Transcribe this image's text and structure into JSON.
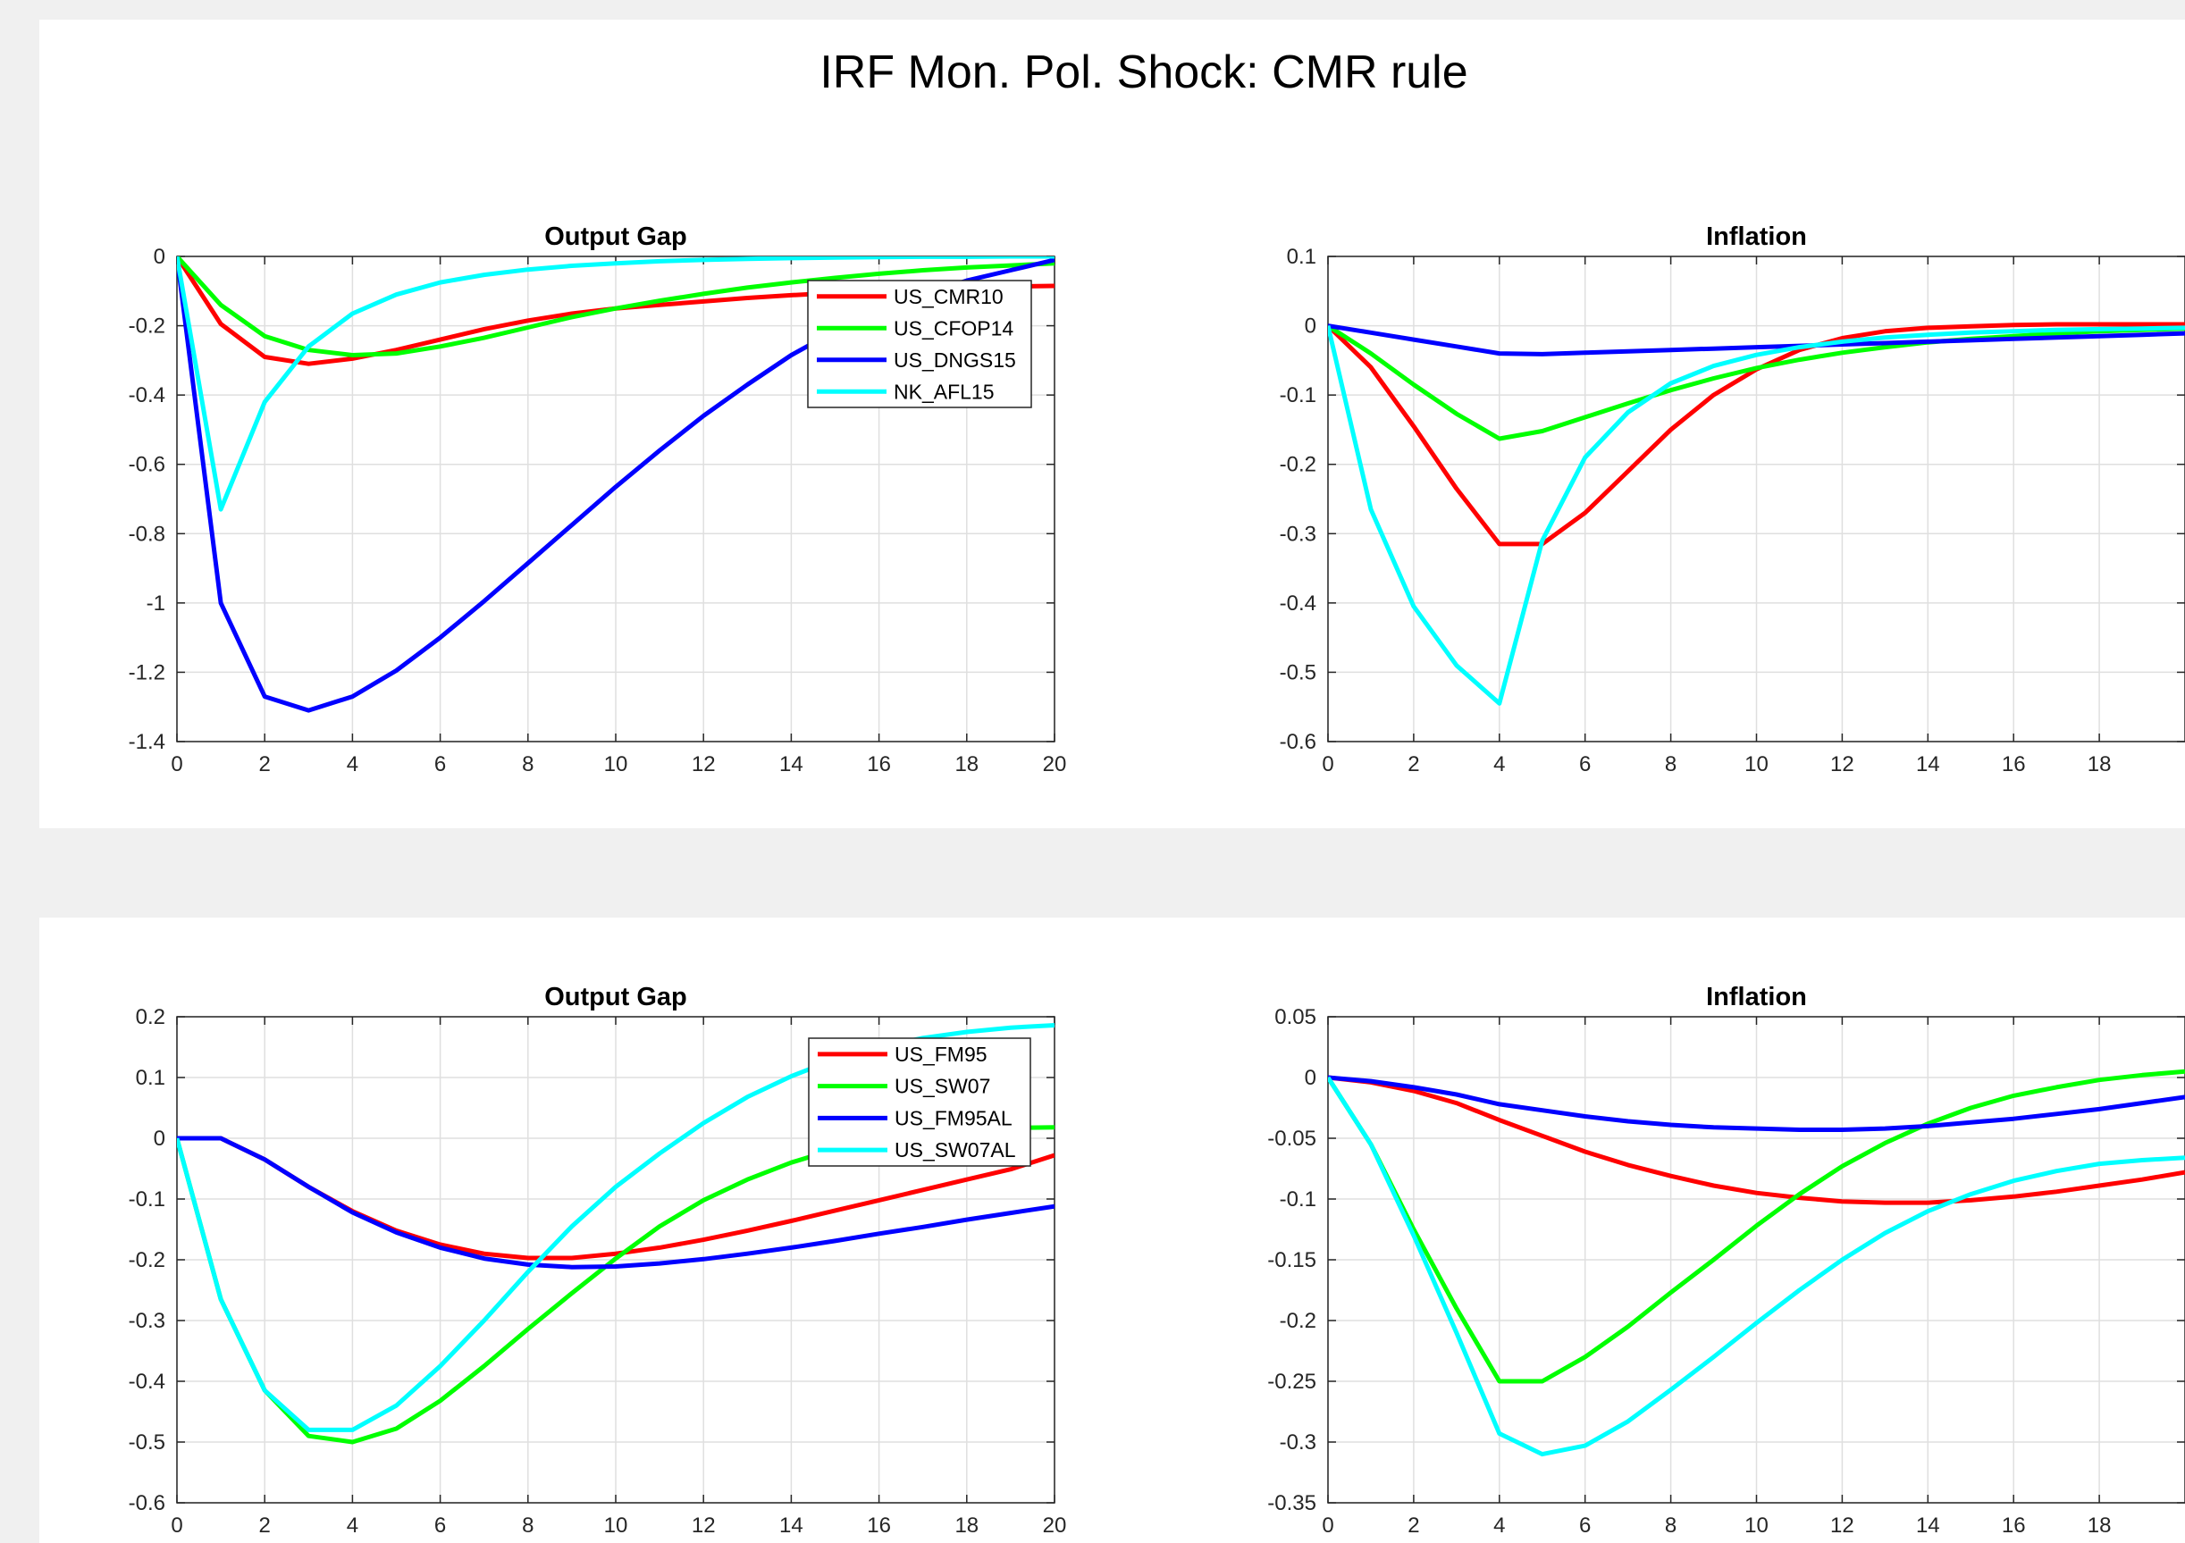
{
  "figure": {
    "title": "IRF Mon. Pol. Shock: CMR rule"
  },
  "chart_data": [
    {
      "type": "line",
      "title": "Output Gap",
      "x": [
        0,
        1,
        2,
        3,
        4,
        5,
        6,
        7,
        8,
        9,
        10,
        11,
        12,
        13,
        14,
        15,
        16,
        17,
        18,
        19,
        20
      ],
      "xlim": [
        0,
        20
      ],
      "xticks": [
        "0",
        "2",
        "4",
        "6",
        "8",
        "10",
        "12",
        "14",
        "16",
        "18",
        "20"
      ],
      "ylim": [
        -1.4,
        0
      ],
      "yticks": [
        "-1.4",
        "-1.2",
        "-1",
        "-0.8",
        "-0.6",
        "-0.4",
        "-0.2",
        "0"
      ],
      "grid": true,
      "legend_position": "top-right",
      "series": [
        {
          "name": "US_CMR10",
          "color": "#ff0000",
          "values": [
            0,
            -0.195,
            -0.29,
            -0.31,
            -0.295,
            -0.27,
            -0.24,
            -0.21,
            -0.185,
            -0.165,
            -0.15,
            -0.14,
            -0.13,
            -0.12,
            -0.112,
            -0.105,
            -0.1,
            -0.095,
            -0.09,
            -0.087,
            -0.085
          ]
        },
        {
          "name": "US_CFOP14",
          "color": "#00ff00",
          "values": [
            0,
            -0.14,
            -0.23,
            -0.27,
            -0.285,
            -0.28,
            -0.26,
            -0.235,
            -0.205,
            -0.175,
            -0.15,
            -0.128,
            -0.108,
            -0.09,
            -0.075,
            -0.062,
            -0.05,
            -0.04,
            -0.032,
            -0.026,
            -0.02
          ]
        },
        {
          "name": "US_DNGS15",
          "color": "#0000ff",
          "values": [
            0,
            -1.0,
            -1.27,
            -1.31,
            -1.27,
            -1.195,
            -1.1,
            -0.995,
            -0.885,
            -0.775,
            -0.665,
            -0.56,
            -0.46,
            -0.37,
            -0.285,
            -0.215,
            -0.16,
            -0.11,
            -0.07,
            -0.04,
            -0.01
          ]
        },
        {
          "name": "NK_AFL15",
          "color": "#00ffff",
          "values": [
            0,
            -0.73,
            -0.42,
            -0.26,
            -0.165,
            -0.11,
            -0.075,
            -0.053,
            -0.038,
            -0.027,
            -0.02,
            -0.014,
            -0.01,
            -0.007,
            -0.005,
            -0.003,
            -0.002,
            -0.001,
            -0.001,
            0,
            0
          ]
        }
      ]
    },
    {
      "type": "line",
      "title": "Inflation",
      "x": [
        0,
        1,
        2,
        3,
        4,
        5,
        6,
        7,
        8,
        9,
        10,
        11,
        12,
        13,
        14,
        15,
        16,
        17,
        18,
        19,
        20
      ],
      "xlim": [
        0,
        20
      ],
      "xticks": [
        "0",
        "2",
        "4",
        "6",
        "8",
        "10",
        "12",
        "14",
        "16",
        "18"
      ],
      "ylim": [
        -0.6,
        0.1
      ],
      "yticks": [
        "-0.6",
        "-0.5",
        "-0.4",
        "-0.3",
        "-0.2",
        "-0.1",
        "0",
        "0.1"
      ],
      "grid": true,
      "series": [
        {
          "name": "US_CMR10",
          "color": "#ff0000",
          "values": [
            0,
            -0.06,
            -0.145,
            -0.235,
            -0.315,
            -0.315,
            -0.27,
            -0.21,
            -0.15,
            -0.1,
            -0.063,
            -0.035,
            -0.018,
            -0.008,
            -0.003,
            -0.001,
            0.001,
            0.002,
            0.002,
            0.002,
            0.002
          ]
        },
        {
          "name": "US_CFOP14",
          "color": "#00ff00",
          "values": [
            0,
            -0.04,
            -0.085,
            -0.127,
            -0.163,
            -0.152,
            -0.132,
            -0.112,
            -0.093,
            -0.076,
            -0.061,
            -0.049,
            -0.039,
            -0.031,
            -0.024,
            -0.019,
            -0.015,
            -0.011,
            -0.008,
            -0.006,
            -0.004
          ]
        },
        {
          "name": "US_DNGS15",
          "color": "#0000ff",
          "values": [
            0,
            -0.01,
            -0.02,
            -0.03,
            -0.04,
            -0.041,
            -0.039,
            -0.037,
            -0.035,
            -0.033,
            -0.031,
            -0.029,
            -0.027,
            -0.025,
            -0.023,
            -0.021,
            -0.019,
            -0.017,
            -0.015,
            -0.013,
            -0.011
          ]
        },
        {
          "name": "NK_AFL15",
          "color": "#00ffff",
          "values": [
            0,
            -0.265,
            -0.405,
            -0.49,
            -0.545,
            -0.31,
            -0.19,
            -0.125,
            -0.083,
            -0.058,
            -0.042,
            -0.031,
            -0.023,
            -0.017,
            -0.013,
            -0.01,
            -0.008,
            -0.006,
            -0.005,
            -0.004,
            -0.003
          ]
        }
      ]
    },
    {
      "type": "line",
      "title": "Output Gap",
      "x": [
        0,
        1,
        2,
        3,
        4,
        5,
        6,
        7,
        8,
        9,
        10,
        11,
        12,
        13,
        14,
        15,
        16,
        17,
        18,
        19,
        20
      ],
      "xlim": [
        0,
        20
      ],
      "xticks": [
        "0",
        "2",
        "4",
        "6",
        "8",
        "10",
        "12",
        "14",
        "16",
        "18",
        "20"
      ],
      "ylim": [
        -0.6,
        0.2
      ],
      "yticks": [
        "-0.6",
        "-0.5",
        "-0.4",
        "-0.3",
        "-0.2",
        "-0.1",
        "0",
        "0.1",
        "0.2"
      ],
      "grid": true,
      "legend_position": "top-right",
      "series": [
        {
          "name": "US_FM95",
          "color": "#ff0000",
          "values": [
            0,
            0,
            -0.035,
            -0.08,
            -0.12,
            -0.152,
            -0.175,
            -0.19,
            -0.197,
            -0.197,
            -0.19,
            -0.18,
            -0.167,
            -0.152,
            -0.136,
            -0.119,
            -0.102,
            -0.085,
            -0.068,
            -0.051,
            -0.028
          ]
        },
        {
          "name": "US_SW07",
          "color": "#00ff00",
          "values": [
            0,
            -0.265,
            -0.415,
            -0.49,
            -0.5,
            -0.478,
            -0.432,
            -0.375,
            -0.314,
            -0.255,
            -0.198,
            -0.145,
            -0.102,
            -0.068,
            -0.04,
            -0.018,
            -0.002,
            0.008,
            0.014,
            0.017,
            0.018
          ]
        },
        {
          "name": "US_FM95AL",
          "color": "#0000ff",
          "values": [
            0,
            0,
            -0.035,
            -0.08,
            -0.122,
            -0.155,
            -0.18,
            -0.198,
            -0.208,
            -0.212,
            -0.211,
            -0.206,
            -0.199,
            -0.19,
            -0.18,
            -0.169,
            -0.157,
            -0.146,
            -0.134,
            -0.123,
            -0.112
          ]
        },
        {
          "name": "US_SW07AL",
          "color": "#00ffff",
          "values": [
            0,
            -0.265,
            -0.415,
            -0.48,
            -0.48,
            -0.44,
            -0.375,
            -0.3,
            -0.22,
            -0.145,
            -0.08,
            -0.025,
            0.025,
            0.068,
            0.102,
            0.13,
            0.15,
            0.165,
            0.175,
            0.182,
            0.186
          ]
        }
      ]
    },
    {
      "type": "line",
      "title": "Inflation",
      "x": [
        0,
        1,
        2,
        3,
        4,
        5,
        6,
        7,
        8,
        9,
        10,
        11,
        12,
        13,
        14,
        15,
        16,
        17,
        18,
        19,
        20
      ],
      "xlim": [
        0,
        20
      ],
      "xticks": [
        "0",
        "2",
        "4",
        "6",
        "8",
        "10",
        "12",
        "14",
        "16",
        "18"
      ],
      "ylim": [
        -0.35,
        0.05
      ],
      "yticks": [
        "-0.35",
        "-0.3",
        "-0.25",
        "-0.2",
        "-0.15",
        "-0.1",
        "-0.05",
        "0",
        "0.05"
      ],
      "grid": true,
      "series": [
        {
          "name": "US_FM95",
          "color": "#ff0000",
          "values": [
            0,
            -0.004,
            -0.011,
            -0.021,
            -0.035,
            -0.048,
            -0.061,
            -0.072,
            -0.081,
            -0.089,
            -0.095,
            -0.099,
            -0.102,
            -0.103,
            -0.103,
            -0.101,
            -0.098,
            -0.094,
            -0.089,
            -0.084,
            -0.078
          ]
        },
        {
          "name": "US_SW07",
          "color": "#00ff00",
          "values": [
            0,
            -0.055,
            -0.125,
            -0.19,
            -0.25,
            -0.25,
            -0.23,
            -0.205,
            -0.177,
            -0.15,
            -0.122,
            -0.096,
            -0.073,
            -0.054,
            -0.038,
            -0.025,
            -0.015,
            -0.008,
            -0.002,
            0.002,
            0.005
          ]
        },
        {
          "name": "US_FM95AL",
          "color": "#0000ff",
          "values": [
            0,
            -0.003,
            -0.008,
            -0.014,
            -0.022,
            -0.027,
            -0.032,
            -0.036,
            -0.039,
            -0.041,
            -0.042,
            -0.043,
            -0.043,
            -0.042,
            -0.04,
            -0.037,
            -0.034,
            -0.03,
            -0.026,
            -0.021,
            -0.016
          ]
        },
        {
          "name": "US_SW07AL",
          "color": "#00ffff",
          "values": [
            0,
            -0.055,
            -0.13,
            -0.21,
            -0.293,
            -0.31,
            -0.303,
            -0.283,
            -0.257,
            -0.23,
            -0.202,
            -0.175,
            -0.15,
            -0.128,
            -0.11,
            -0.096,
            -0.085,
            -0.077,
            -0.071,
            -0.068,
            -0.066
          ]
        }
      ]
    }
  ]
}
